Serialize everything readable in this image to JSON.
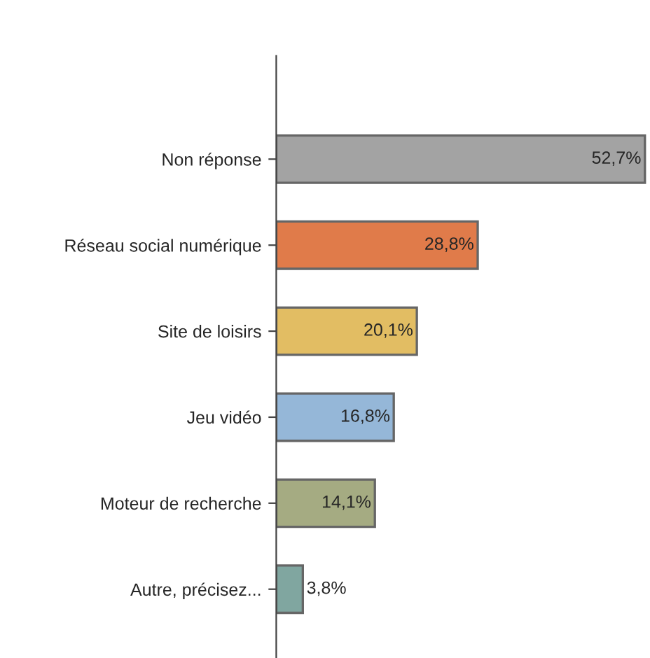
{
  "chart_data": {
    "type": "bar",
    "orientation": "horizontal",
    "categories": [
      "Non réponse",
      "Réseau social numérique",
      "Site de loisirs",
      "Jeu vidéo",
      "Moteur de recherche",
      "Autre, précisez..."
    ],
    "values": [
      52.7,
      28.8,
      20.1,
      16.8,
      14.1,
      3.8
    ],
    "colors": [
      "#a3a3a3",
      "#e07b4a",
      "#e2bd63",
      "#95b7d8",
      "#a5ab82",
      "#80a6a0"
    ],
    "value_labels": [
      "52,7%",
      "28,8%",
      "20,1%",
      "16,8%",
      "14,1%",
      "3,8%"
    ],
    "grid": false,
    "legend": false
  }
}
